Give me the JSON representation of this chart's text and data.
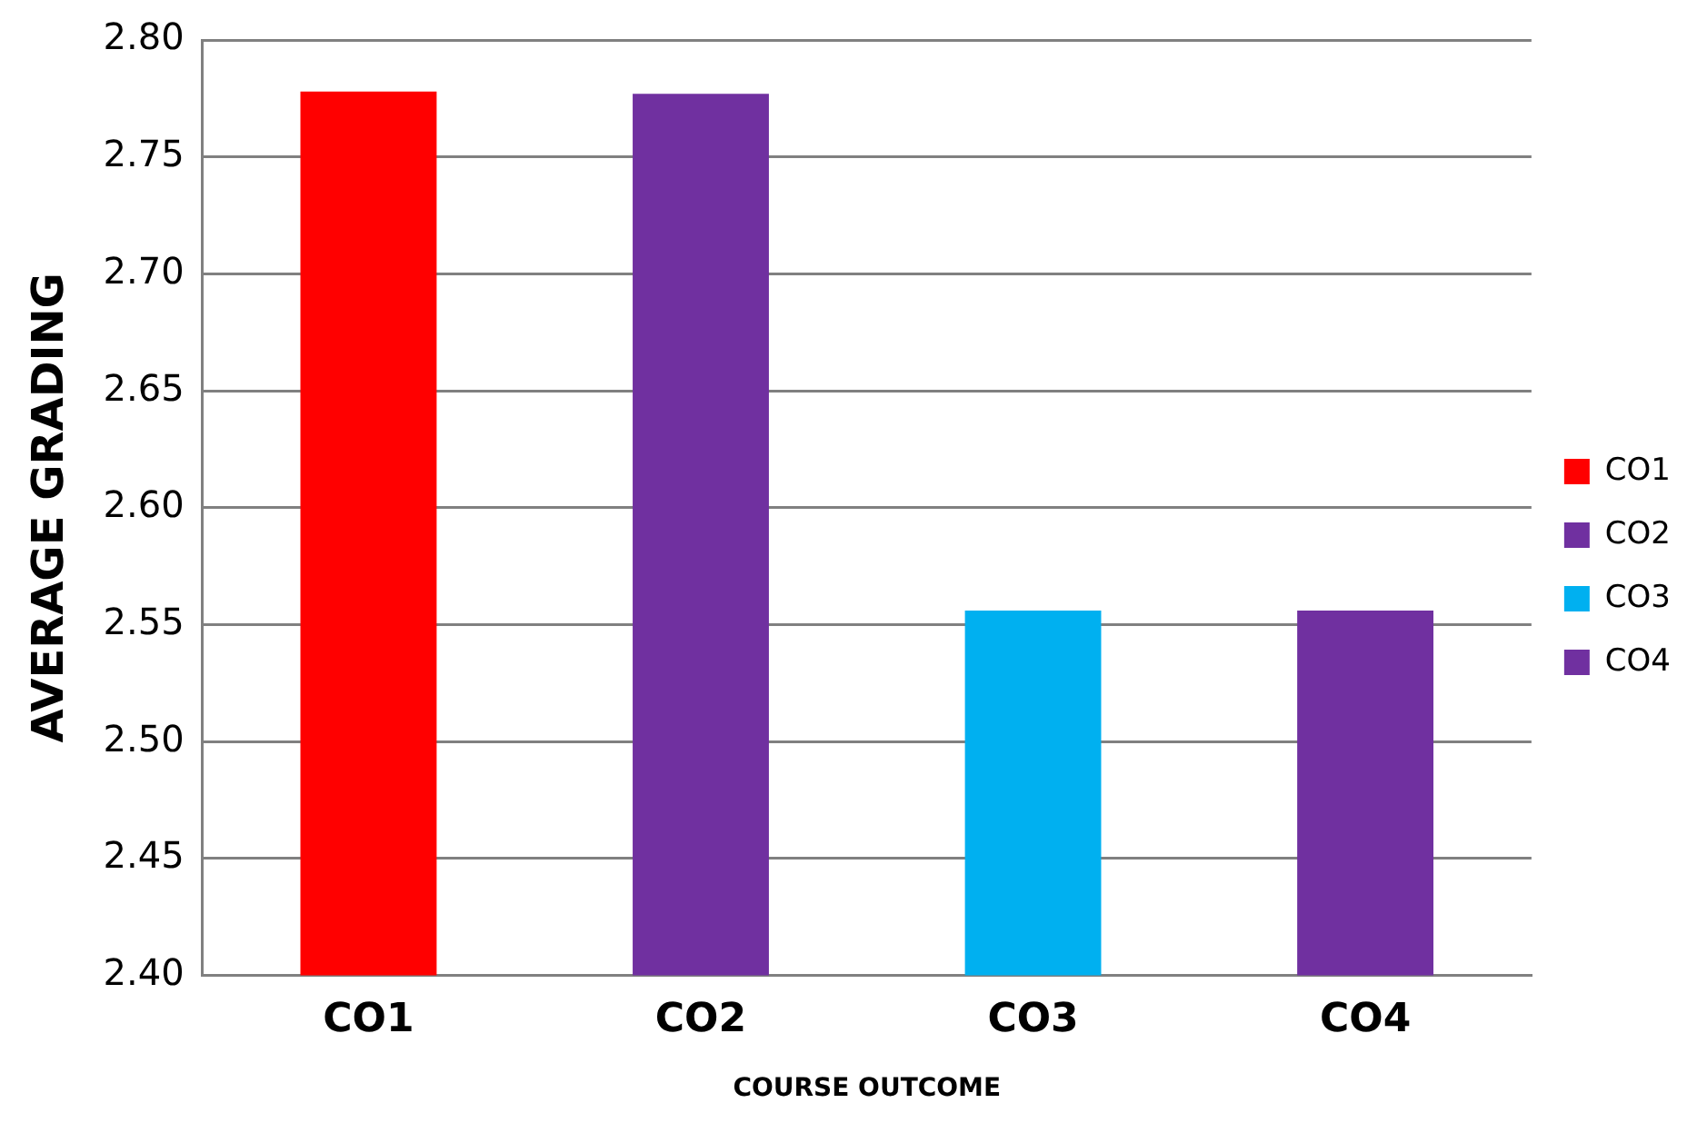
{
  "chart_data": {
    "type": "bar",
    "xlabel": "COURSE OUTCOME",
    "ylabel": "AVERAGE GRADING",
    "categories": [
      "CO1",
      "CO2",
      "CO3",
      "CO4"
    ],
    "series": [
      {
        "name": "CO1",
        "color": "#ff0000",
        "values": [
          2.778,
          null,
          null,
          null
        ]
      },
      {
        "name": "CO2",
        "color": "#7030a0",
        "values": [
          null,
          2.777,
          null,
          null
        ]
      },
      {
        "name": "CO3",
        "color": "#00b0f0",
        "values": [
          null,
          null,
          2.556,
          null
        ]
      },
      {
        "name": "CO4",
        "color": "#7030a0",
        "values": [
          null,
          null,
          null,
          2.556
        ]
      }
    ],
    "ylim": [
      2.4,
      2.8
    ],
    "yticks": [
      {
        "value": 2.4,
        "label": "2.40"
      },
      2.45,
      {
        "value": 2.5,
        "label": "2.50"
      },
      2.55,
      {
        "value": 2.6,
        "label": "2.60"
      },
      2.65,
      {
        "value": 2.7,
        "label": "2.70"
      },
      2.75,
      {
        "value": 2.8,
        "label": "2.80"
      }
    ],
    "grid": "y",
    "legend": "right"
  }
}
